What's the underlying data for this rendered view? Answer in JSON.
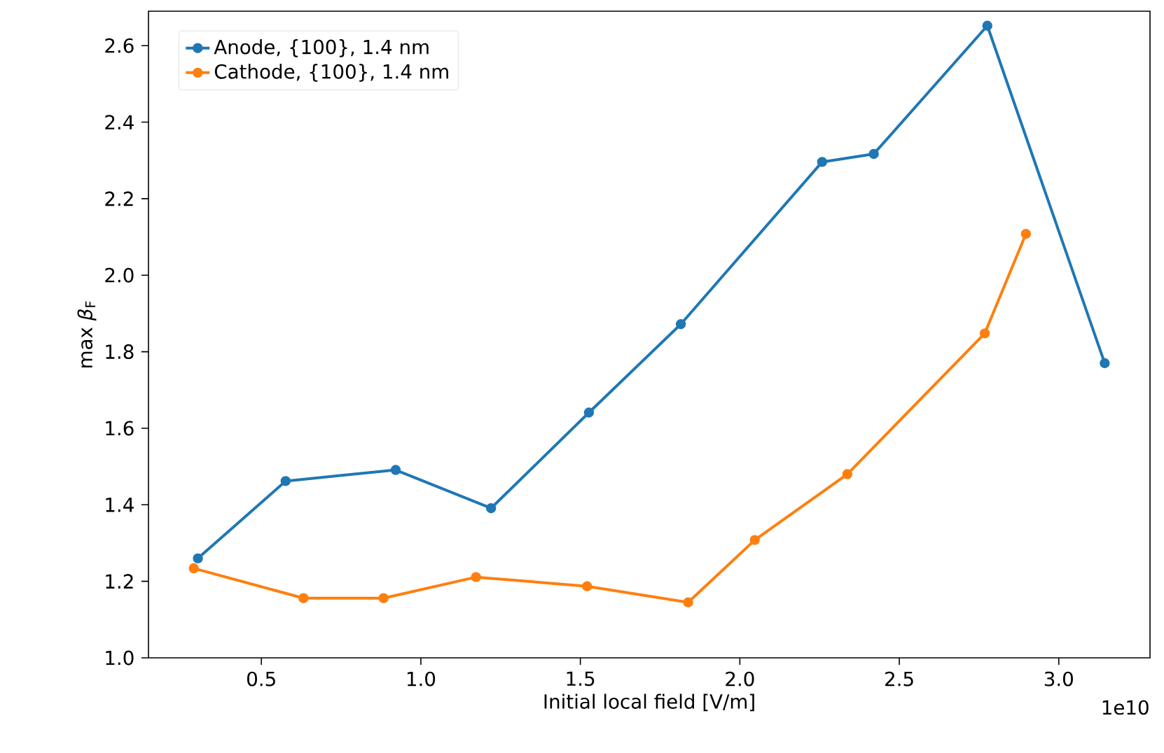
{
  "chart_data": {
    "type": "line",
    "xlabel": "Initial local field [V/m]",
    "ylabel": "max *β*$_{F}$",
    "series": [
      {
        "name": "Anode, {100}, 1.4 nm",
        "color": "#1f77b4",
        "x": [
          0.301,
          0.576,
          0.921,
          1.22,
          1.527,
          1.815,
          2.258,
          2.42,
          2.776,
          3.144
        ],
        "values": [
          1.26,
          1.462,
          1.491,
          1.391,
          1.641,
          1.872,
          2.296,
          2.317,
          2.652,
          1.77
        ]
      },
      {
        "name": "Cathode, {100}, 1.4 nm",
        "color": "#ff7f0e",
        "x": [
          0.288,
          0.632,
          0.883,
          1.173,
          1.521,
          1.838,
          2.047,
          2.337,
          2.768,
          2.897
        ],
        "values": [
          1.234,
          1.156,
          1.156,
          1.211,
          1.187,
          1.145,
          1.308,
          1.48,
          1.848,
          2.108
        ]
      }
    ],
    "xlim": [
      0.146,
      3.286
    ],
    "ylim": [
      1.0,
      2.69
    ],
    "xticks": [
      {
        "value": 0.5,
        "label": "0.5"
      },
      {
        "value": 1.0,
        "label": "1.0"
      },
      {
        "value": 1.5,
        "label": "1.5"
      },
      {
        "value": 2.0,
        "label": "2.0"
      },
      {
        "value": 2.5,
        "label": "2.5"
      },
      {
        "value": 3.0,
        "label": "3.0"
      }
    ],
    "yticks": [
      {
        "value": 1.0,
        "label": "1.0"
      },
      {
        "value": 1.2,
        "label": "1.2"
      },
      {
        "value": 1.4,
        "label": "1.4"
      },
      {
        "value": 1.6,
        "label": "1.6"
      },
      {
        "value": 1.8,
        "label": "1.8"
      },
      {
        "value": 2.0,
        "label": "2.0"
      },
      {
        "value": 2.2,
        "label": "2.2"
      },
      {
        "value": 2.4,
        "label": "2.4"
      },
      {
        "value": 2.6,
        "label": "2.6"
      }
    ],
    "annotations": [
      "1e10"
    ],
    "legend": "top left",
    "grid": false,
    "marker": "circle",
    "line_style": "solid"
  }
}
